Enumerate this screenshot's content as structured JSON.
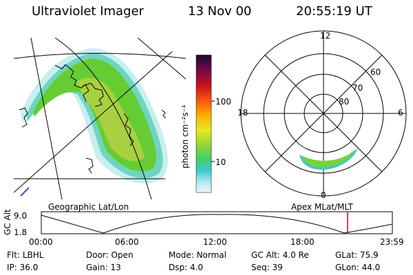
{
  "header": {
    "instrument": "Ultraviolet Imager",
    "date": "13 Nov 00",
    "time": "20:55:19 UT"
  },
  "left_panel": {
    "label": "Geographic Lat/Lon"
  },
  "colorbar": {
    "unit_label": "photon cm⁻²s⁻¹",
    "ticks": [
      "100",
      "10"
    ],
    "scale": "log"
  },
  "polar_plot": {
    "label": "Apex MLat/MLT",
    "mlt_labels": {
      "top": "12",
      "left": "18",
      "right": "6",
      "bottom": "0"
    },
    "mlat_labels": [
      "60",
      "70",
      "80"
    ]
  },
  "altitude_plot": {
    "y_label": "GC Alt",
    "y_ticks": [
      "9.0",
      "1.8"
    ],
    "x_ticks": [
      "00:00",
      "06:00",
      "12:00",
      "18:00",
      "23:59"
    ],
    "marker_color": "#dd0000"
  },
  "status": {
    "row1": [
      {
        "label": "Flt:",
        "value": "LBHL"
      },
      {
        "label": "Door:",
        "value": "Open"
      },
      {
        "label": "Mode:",
        "value": "Normal"
      },
      {
        "label": "GC Alt:",
        "value": "4.0 Re"
      },
      {
        "label": "GLat:",
        "value": "75.9"
      }
    ],
    "row2": [
      {
        "label": "IP:",
        "value": "36.0"
      },
      {
        "label": "Gain:",
        "value": "13"
      },
      {
        "label": "Dsp:",
        "value": "4.0"
      },
      {
        "label": "Seq:",
        "value": "39"
      },
      {
        "label": "GLon:",
        "value": "44.0"
      }
    ]
  },
  "colors": {
    "aurora_core": "#9fcf3f",
    "aurora_mid": "#6ad23c",
    "aurora_edge": "#48c8b8",
    "aurora_fringe": "#c8eef0"
  }
}
